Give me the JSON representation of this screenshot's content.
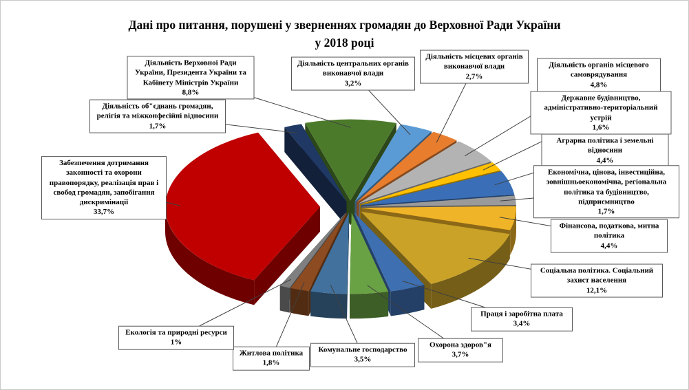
{
  "chart_data": {
    "type": "pie",
    "style": "3d-exploded",
    "title": "Дані про питання, порушені у зверненнях громадян до Верховної Ради України у 2018 році",
    "title_lines": [
      "Дані про питання, порушені у зверненнях громадян до Верховної Ради України",
      "у 2018 році"
    ],
    "unit": "%",
    "legend": "none",
    "start_angle_deg": -17,
    "slices": [
      {
        "label": "Діяльність Верховної Ради України, Президента України та Кабінету Міністрів України",
        "value": 8.8,
        "pct": "8,8%",
        "color": "#4C7A2B"
      },
      {
        "label": "Діяльність центральних органів виконавчої влади",
        "value": 3.2,
        "pct": "3,2%",
        "color": "#5B9BD5"
      },
      {
        "label": "Діяльність місцевих органів виконавчої влади",
        "value": 2.7,
        "pct": "2,7%",
        "color": "#E87D2E"
      },
      {
        "label": "Діяльність органів місцевого самоврядування",
        "value": 4.8,
        "pct": "4,8%",
        "color": "#B3B3B3"
      },
      {
        "label": "Державне будівництво, адміністративно-територіальний устрій",
        "value": 1.6,
        "pct": "1,6%",
        "color": "#FFC000"
      },
      {
        "label": "Аграрна політика і земельні відносини",
        "value": 4.4,
        "pct": "4,4%",
        "color": "#3A6FB7"
      },
      {
        "label": "Економічна, цінова, інвестиційна, зовнішньоекономічна, регіональна політика та будівництво, підприємництво",
        "value": 1.7,
        "pct": "1,7%",
        "color": "#9A9A9A"
      },
      {
        "label": "Фінансова, податкова, митна політика",
        "value": 4.4,
        "pct": "4,4%",
        "color": "#F0B428"
      },
      {
        "label": "Соціальна політика. Соціальний захист населення",
        "value": 12.1,
        "pct": "12,1%",
        "color": "#C9A227"
      },
      {
        "label": "Праця і заробітна плата",
        "value": 3.4,
        "pct": "3,4%",
        "color": "#3E6FB0"
      },
      {
        "label": "Охорона здоров\"я",
        "value": 3.7,
        "pct": "3,7%",
        "color": "#69A244"
      },
      {
        "label": "Комунальне господарство",
        "value": 3.5,
        "pct": "3,5%",
        "color": "#41719C"
      },
      {
        "label": "Житлова політика",
        "value": 1.8,
        "pct": "1,8%",
        "color": "#8C4B20"
      },
      {
        "label": "Екологія та природні ресурси",
        "value": 1.0,
        "pct": "1%",
        "color": "#7F7F7F"
      },
      {
        "label": "Забезпечення дотримання законності та охорони правопорядку, реалізація прав і свобод громадян, запобігання дискримінації",
        "value": 33.7,
        "pct": "33,7%",
        "color": "#C00000"
      },
      {
        "label": "Діяльність об\"єднань громадян, релігія та міжконфесійні відносини",
        "value": 1.7,
        "pct": "1,7%",
        "color": "#1F3864"
      }
    ]
  }
}
